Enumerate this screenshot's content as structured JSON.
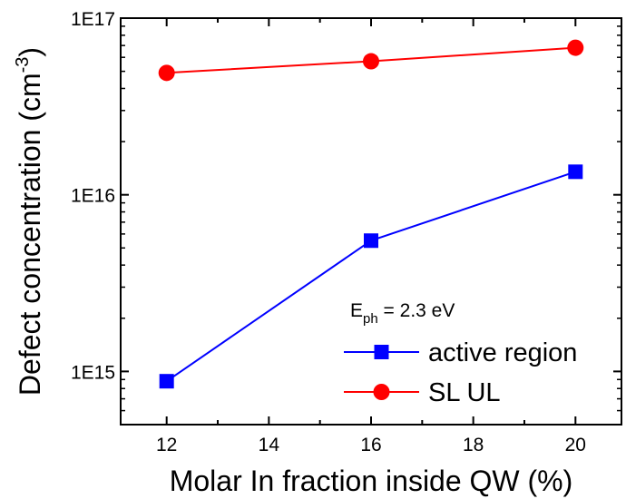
{
  "chart_data": {
    "type": "line",
    "xlabel": "Molar In fraction inside QW (%)",
    "ylabel": {
      "text": "Defect concentration (cm",
      "superscript": "-3",
      "suffix": ")"
    },
    "x_ticks": [
      "12",
      "14",
      "16",
      "18",
      "20"
    ],
    "y_ticks": [
      "1E15",
      "1E16",
      "1E17"
    ],
    "xlim": [
      11.1,
      20.9
    ],
    "ylim": [
      500000000000000.0,
      1e+17
    ],
    "y_scale": "log",
    "grid": false,
    "legend_position": "bottom-right",
    "annotation": {
      "main": "E",
      "subscript": "ph",
      "rest": " = 2.3 eV"
    },
    "series": [
      {
        "name": "active region",
        "color": "#0000ff",
        "marker": "square",
        "x": [
          12,
          16,
          20
        ],
        "y": [
          880000000000000.0,
          5500000000000000.0,
          1.35e+16
        ]
      },
      {
        "name": "SL UL",
        "color": "#ff0000",
        "marker": "circle",
        "x": [
          12,
          16,
          20
        ],
        "y": [
          4.9e+16,
          5.7e+16,
          6.8e+16
        ]
      }
    ]
  }
}
